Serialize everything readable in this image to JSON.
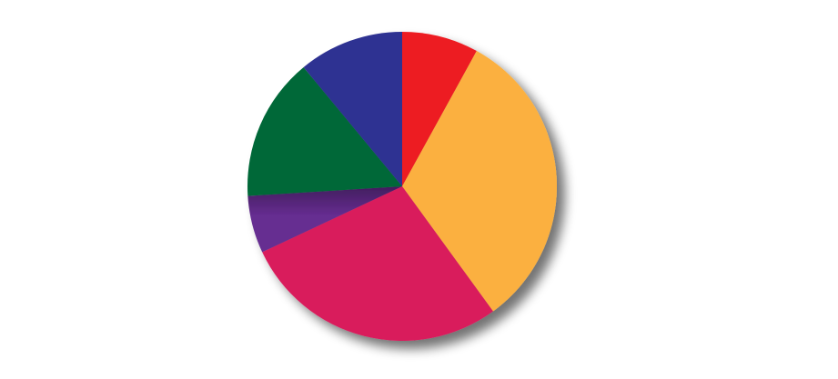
{
  "chart_data": {
    "type": "pie",
    "title": "",
    "start_angle_deg": 0,
    "direction": "clockwise",
    "slices": [
      {
        "value": 8,
        "color": "#ED1C24"
      },
      {
        "value": 32,
        "color": "#FBB040"
      },
      {
        "value": 28,
        "color": "#D91B5C"
      },
      {
        "value": 6,
        "color": "#662D91"
      },
      {
        "value": 15,
        "color": "#006838"
      },
      {
        "value": 11,
        "color": "#2E3192"
      }
    ]
  }
}
